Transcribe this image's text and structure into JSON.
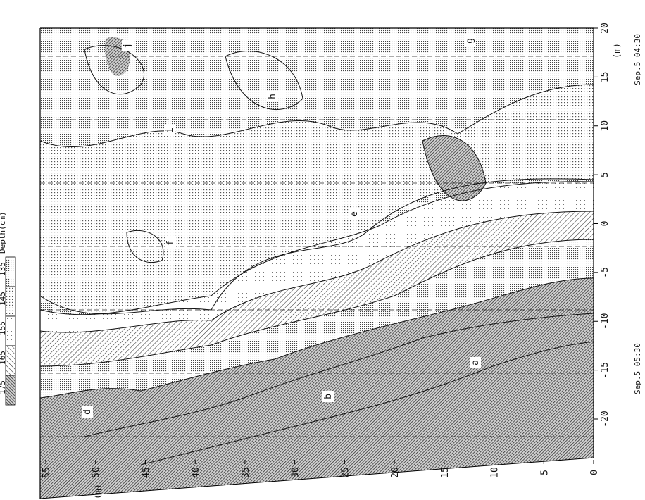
{
  "chart_data": {
    "type": "heatmap",
    "title": "",
    "legend": {
      "title": "Depth(cm)",
      "position": "top-left",
      "entries": [
        {
          "label": "135",
          "pattern": "fine-dots"
        },
        {
          "label": "145",
          "pattern": "medium-dots"
        },
        {
          "label": "155",
          "pattern": "light-dots"
        },
        {
          "label": "165",
          "pattern": "hatch"
        },
        {
          "label": "175",
          "pattern": "dense-hatch"
        }
      ]
    },
    "axes": {
      "horizontal": {
        "unit": "(m)",
        "ticks": [
          "-20",
          "-15",
          "-10",
          "-5",
          "0",
          "5",
          "10",
          "15",
          "20"
        ],
        "range": [
          -20,
          20
        ]
      },
      "vertical": {
        "unit": "(m)",
        "ticks": [
          "0",
          "5",
          "10",
          "15",
          "20",
          "25",
          "30",
          "35",
          "40",
          "45",
          "50",
          "55"
        ],
        "range": [
          0,
          55
        ]
      }
    },
    "time_labels": {
      "bottom": "Sep.5 05:30",
      "top": "Sep.5 04:30"
    },
    "zone_labels": [
      "a",
      "b",
      "d",
      "e",
      "f",
      "g",
      "h",
      "i",
      "j"
    ],
    "grid": false
  }
}
